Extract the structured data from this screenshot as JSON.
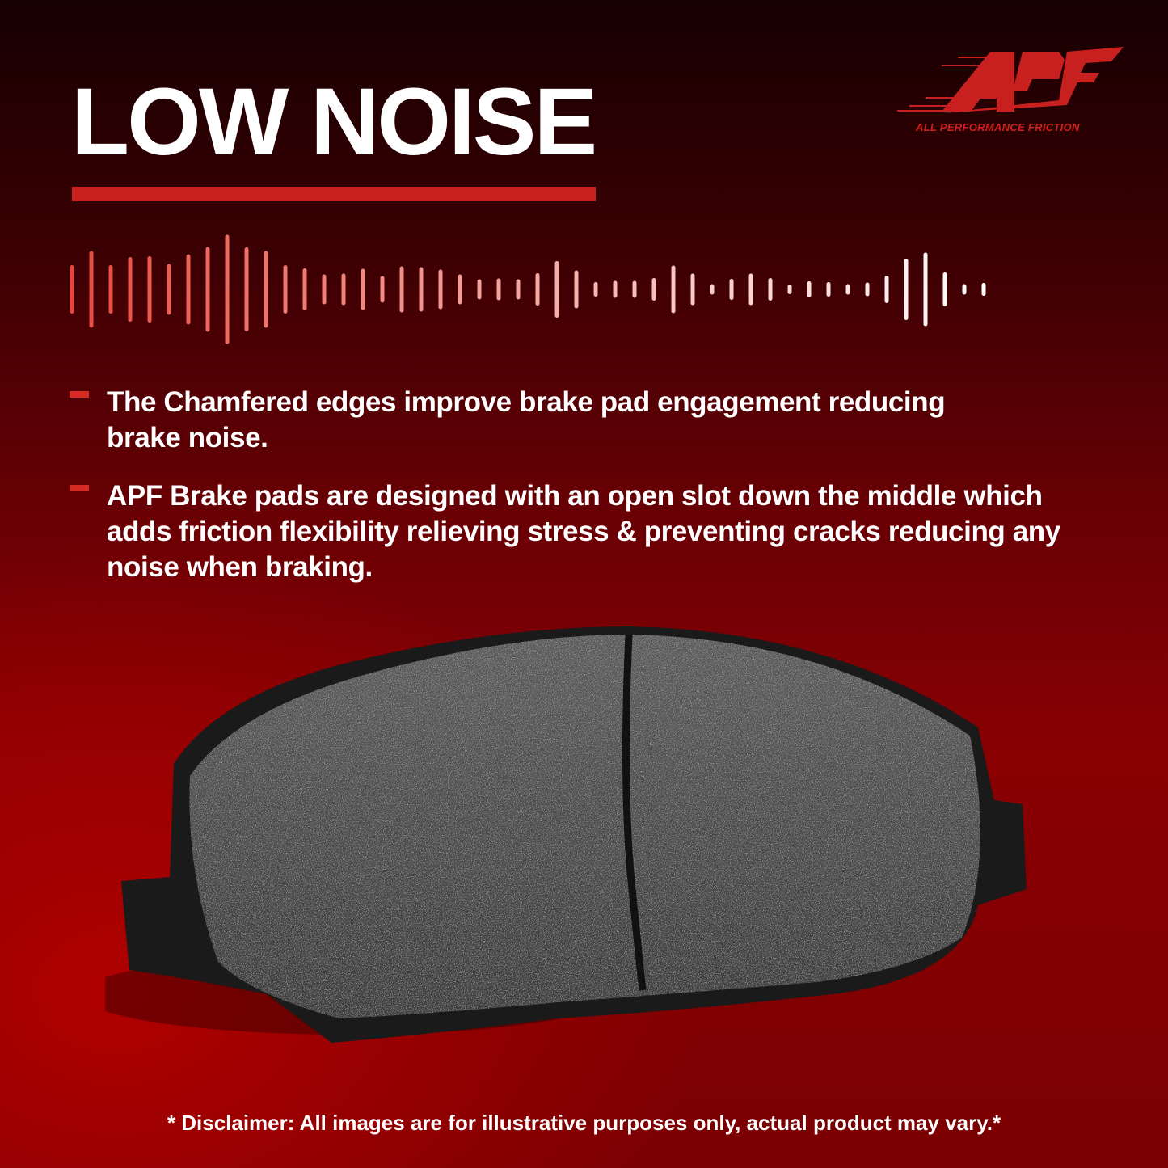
{
  "title": "LOW NOISE",
  "logo": {
    "text": "APF",
    "tagline": "ALL PERFORMANCE FRICTION",
    "color": "#c8201e"
  },
  "bullets": [
    {
      "text": "The Chamfered edges improve brake pad engagement reducing brake noise."
    },
    {
      "text": "APF Brake pads are designed with an open slot down the middle which adds friction flexibility relieving stress & preventing cracks reducing any noise when braking."
    }
  ],
  "image": {
    "subject": "brake-pad"
  },
  "disclaimer": "* Disclaimer: All images are for illustrative purposes only, actual product may vary.*",
  "colors": {
    "accent": "#c8201e",
    "wave_start": "#e8463a",
    "wave_end": "#ffffff"
  }
}
